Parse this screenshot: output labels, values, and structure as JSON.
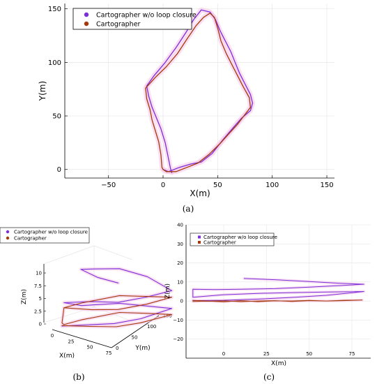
{
  "colors": {
    "wo": "#7b2fd9",
    "w": "#a5390a",
    "axis": "#000000",
    "grid": "#e6e6e6",
    "halo": "#f6c9ea"
  },
  "captions": {
    "a": "(a)",
    "b": "(b)",
    "c": "(c)"
  },
  "chart_data": [
    {
      "id": "a",
      "type": "line",
      "xlabel": "X(m)",
      "ylabel": "Y(m)",
      "xlim": [
        -90,
        157
      ],
      "ylim": [
        -8,
        155
      ],
      "xticks": [
        -50,
        0,
        50,
        100,
        150
      ],
      "yticks": [
        0,
        50,
        100,
        150
      ],
      "grid": true,
      "legend_position": "top-left",
      "series": [
        {
          "name": "Cartographer w/o loop closure",
          "points": [
            [
              0,
              0
            ],
            [
              5,
              -2
            ],
            [
              15,
              2
            ],
            [
              25,
              5
            ],
            [
              35,
              7
            ],
            [
              45,
              15
            ],
            [
              55,
              28
            ],
            [
              65,
              40
            ],
            [
              72,
              48
            ],
            [
              80,
              55
            ],
            [
              82,
              62
            ],
            [
              80,
              70
            ],
            [
              75,
              80
            ],
            [
              70,
              90
            ],
            [
              66,
              100
            ],
            [
              62,
              110
            ],
            [
              57,
              120
            ],
            [
              52,
              130
            ],
            [
              48,
              140
            ],
            [
              43,
              147
            ],
            [
              35,
              149
            ],
            [
              28,
              140
            ],
            [
              21,
              128
            ],
            [
              12,
              114
            ],
            [
              2,
              100
            ],
            [
              -8,
              88
            ],
            [
              -15,
              78
            ],
            [
              -13,
              68
            ],
            [
              -10,
              58
            ],
            [
              -6,
              48
            ],
            [
              -2,
              38
            ],
            [
              2,
              25
            ],
            [
              5,
              10
            ],
            [
              7,
              0
            ],
            [
              8,
              -3
            ]
          ]
        },
        {
          "name": "Cartographer",
          "points": [
            [
              0,
              0
            ],
            [
              3,
              -2
            ],
            [
              12,
              -2
            ],
            [
              22,
              2
            ],
            [
              32,
              6
            ],
            [
              42,
              14
            ],
            [
              52,
              24
            ],
            [
              60,
              33
            ],
            [
              68,
              42
            ],
            [
              74,
              50
            ],
            [
              80,
              58
            ],
            [
              79,
              67
            ],
            [
              73,
              78
            ],
            [
              68,
              88
            ],
            [
              63,
              98
            ],
            [
              58,
              108
            ],
            [
              53,
              120
            ],
            [
              50,
              132
            ],
            [
              47,
              142
            ],
            [
              43,
              146
            ],
            [
              37,
              142
            ],
            [
              30,
              134
            ],
            [
              22,
              122
            ],
            [
              13,
              108
            ],
            [
              3,
              96
            ],
            [
              -7,
              86
            ],
            [
              -16,
              76
            ],
            [
              -15,
              66
            ],
            [
              -12,
              56
            ],
            [
              -10,
              46
            ],
            [
              -7,
              36
            ],
            [
              -4,
              26
            ],
            [
              -2,
              14
            ],
            [
              -1,
              2
            ],
            [
              0,
              0
            ]
          ]
        }
      ]
    },
    {
      "id": "b",
      "type": "line",
      "projection": "3d",
      "xlabel": "X(m)",
      "ylabel": "Y(m)",
      "zlabel": "Z(m)",
      "xticks": [
        0,
        25,
        50,
        75
      ],
      "yticks": [
        0,
        50,
        100,
        150
      ],
      "zticks": [
        0.0,
        2.5,
        5.0,
        7.5,
        10.0
      ],
      "grid": true,
      "legend_position": "top-left",
      "series": [
        {
          "name": "Cartographer w/o loop closure",
          "points": [
            [
              0,
              0,
              0
            ],
            [
              75,
              0,
              1
            ],
            [
              80,
              60,
              1
            ],
            [
              75,
              150,
              1.5
            ],
            [
              0,
              150,
              2
            ],
            [
              -5,
              60,
              3
            ],
            [
              0,
              5,
              4.5
            ],
            [
              40,
              5,
              5
            ],
            [
              75,
              10,
              5
            ],
            [
              80,
              75,
              5
            ],
            [
              75,
              150,
              5
            ],
            [
              40,
              150,
              7.5
            ],
            [
              0,
              150,
              8.8
            ],
            [
              -3,
              90,
              9.7
            ],
            [
              5,
              40,
              10.5
            ],
            [
              40,
              20,
              9.5
            ],
            [
              75,
              10,
              8.8
            ]
          ]
        },
        {
          "name": "Cartographer",
          "points": [
            [
              0,
              0,
              0.1
            ],
            [
              40,
              0,
              0.2
            ],
            [
              75,
              5,
              0.3
            ],
            [
              80,
              60,
              0.2
            ],
            [
              75,
              150,
              0.3
            ],
            [
              40,
              150,
              0.3
            ],
            [
              0,
              150,
              0.2
            ],
            [
              -5,
              60,
              0.2
            ],
            [
              0,
              5,
              0.2
            ],
            [
              0,
              0,
              0.6
            ],
            [
              0,
              5,
              3.5
            ],
            [
              40,
              5,
              3.4
            ],
            [
              75,
              10,
              3.6
            ],
            [
              80,
              75,
              3.6
            ],
            [
              75,
              150,
              3.7
            ],
            [
              0,
              150,
              3.5
            ],
            [
              -5,
              60,
              3.5
            ],
            [
              0,
              5,
              3.5
            ]
          ]
        }
      ]
    },
    {
      "id": "c",
      "type": "line",
      "xlabel": "X(m)",
      "ylabel": "Z(m)",
      "xlim": [
        -22,
        86
      ],
      "ylim": [
        -30,
        40
      ],
      "xticks": [
        0,
        25,
        50,
        75
      ],
      "yticks": [
        -20,
        -10,
        0,
        10,
        20,
        30,
        40
      ],
      "grid": true,
      "legend_position": "top-left",
      "series": [
        {
          "name": "Cartographer w/o loop closure",
          "points": [
            [
              12,
              11.8
            ],
            [
              30,
              11.2
            ],
            [
              50,
              10.2
            ],
            [
              70,
              9.2
            ],
            [
              82,
              8.8
            ],
            [
              70,
              8.2
            ],
            [
              50,
              7.3
            ],
            [
              30,
              6.5
            ],
            [
              10,
              6.2
            ],
            [
              -5,
              6.0
            ],
            [
              -18,
              6.2
            ],
            [
              -18,
              2.0
            ],
            [
              0,
              3.3
            ],
            [
              20,
              4.0
            ],
            [
              40,
              4.4
            ],
            [
              60,
              4.7
            ],
            [
              82,
              5.0
            ],
            [
              60,
              3.0
            ],
            [
              40,
              1.9
            ],
            [
              20,
              1.0
            ],
            [
              0,
              0.4
            ],
            [
              -18,
              0.2
            ]
          ]
        },
        {
          "name": "Cartographer",
          "points": [
            [
              -18,
              0.3
            ],
            [
              -10,
              0.0
            ],
            [
              0,
              -0.4
            ],
            [
              10,
              0.2
            ],
            [
              20,
              -0.3
            ],
            [
              30,
              0.1
            ],
            [
              40,
              0.0
            ],
            [
              50,
              0.3
            ],
            [
              60,
              0.0
            ],
            [
              70,
              0.4
            ],
            [
              81,
              0.5
            ],
            [
              70,
              0.2
            ],
            [
              60,
              0.0
            ],
            [
              50,
              0.2
            ],
            [
              40,
              -0.2
            ],
            [
              30,
              0.2
            ],
            [
              20,
              0.0
            ],
            [
              10,
              -0.3
            ],
            [
              0,
              0.1
            ],
            [
              -18,
              -0.2
            ]
          ]
        }
      ]
    }
  ]
}
